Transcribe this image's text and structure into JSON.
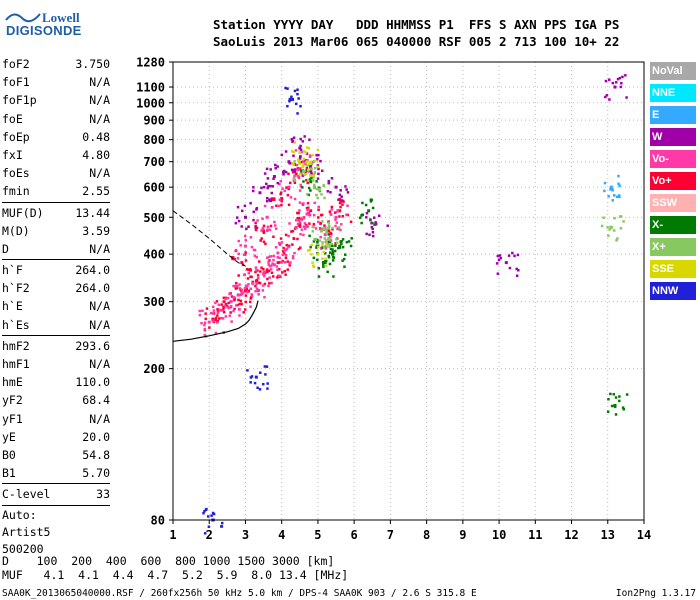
{
  "logo": {
    "line1": "Lowell",
    "line2": "DIGISONDE"
  },
  "header": {
    "line1": "Station YYYY DAY   DDD HHMMSS P1  FFS S AXN PPS IGA PS",
    "line2": "SaoLuis 2013 Mar06 065 040000 RSF 005 2 713 100 10+ 22"
  },
  "params_group1": [
    {
      "name": "foF2",
      "value": "3.750"
    },
    {
      "name": "foF1",
      "value": "N/A"
    },
    {
      "name": "foF1p",
      "value": "N/A"
    },
    {
      "name": "foE",
      "value": "N/A"
    },
    {
      "name": "foEp",
      "value": "0.48"
    },
    {
      "name": "fxI",
      "value": "4.80"
    },
    {
      "name": "foEs",
      "value": "N/A"
    },
    {
      "name": "fmin",
      "value": "2.55"
    }
  ],
  "params_group2": [
    {
      "name": "MUF(D)",
      "value": "13.44"
    },
    {
      "name": "M(D)",
      "value": "3.59"
    },
    {
      "name": "D",
      "value": "N/A"
    }
  ],
  "params_group3": [
    {
      "name": "h`F",
      "value": "264.0"
    },
    {
      "name": "h`F2",
      "value": "264.0"
    },
    {
      "name": "h`E",
      "value": "N/A"
    },
    {
      "name": "h`Es",
      "value": "N/A"
    }
  ],
  "params_group4": [
    {
      "name": "hmF2",
      "value": "293.6"
    },
    {
      "name": "hmF1",
      "value": "N/A"
    },
    {
      "name": "hmE",
      "value": "110.0"
    },
    {
      "name": "yF2",
      "value": "68.4"
    },
    {
      "name": "yF1",
      "value": "N/A"
    },
    {
      "name": "yE",
      "value": "20.0"
    },
    {
      "name": "B0",
      "value": "54.8"
    },
    {
      "name": "B1",
      "value": "5.70"
    }
  ],
  "params_group5": [
    {
      "name": "C-level",
      "value": "33"
    }
  ],
  "auto": {
    "l1": "Auto:",
    "l2": "Artist5",
    "l3": "500200"
  },
  "footer": {
    "d_row": "D    100  200  400  600  800 1000 1500 3000 [km]",
    "muf_row": "MUF   4.1  4.1  4.4  4.7  5.2  5.9  8.0 13.4 [MHz]"
  },
  "fileinfo": "SAA0K_2013065040000.RSF / 260fx256h 50 kHz 5.0 km / DPS-4 SAA0K 903 / 2.6 S 315.8 E",
  "version": "Ion2Png 1.3.17",
  "legend": [
    {
      "label": "NoVal",
      "color": "#a8a8a8"
    },
    {
      "label": "NNE",
      "color": "#00e8ff"
    },
    {
      "label": "E",
      "color": "#33aaff"
    },
    {
      "label": "W",
      "color": "#a000a8"
    },
    {
      "label": "Vo-",
      "color": "#ff3aa8"
    },
    {
      "label": "Vo+",
      "color": "#ff0033"
    },
    {
      "label": "SSW",
      "color": "#ffb0b0"
    },
    {
      "label": "X-",
      "color": "#007a00"
    },
    {
      "label": "X+",
      "color": "#88c860"
    },
    {
      "label": "SSE",
      "color": "#d8d800"
    },
    {
      "label": "NNW",
      "color": "#2020d8"
    }
  ],
  "chart_data": {
    "type": "scatter",
    "title": "",
    "xlabel": "",
    "ylabel": "",
    "xlim": [
      1,
      14
    ],
    "ylim": [
      80,
      1280
    ],
    "y_scale": "log",
    "x_ticks": [
      1,
      2,
      3,
      4,
      5,
      6,
      7,
      8,
      9,
      10,
      11,
      12,
      13,
      14
    ],
    "y_ticks": [
      80,
      200,
      300,
      400,
      500,
      600,
      700,
      800,
      900,
      1000,
      1100,
      1280
    ],
    "grid": true,
    "legend_position": "right",
    "series": [
      {
        "name": "Vo+",
        "color": "#ff0033",
        "points": [
          [
            2.1,
            270
          ],
          [
            2.4,
            290
          ],
          [
            2.7,
            305
          ],
          [
            3.0,
            320
          ],
          [
            3.3,
            340
          ],
          [
            3.6,
            360
          ],
          [
            3.9,
            380
          ],
          [
            4.2,
            420
          ],
          [
            4.5,
            480
          ],
          [
            4.8,
            520
          ],
          [
            5.3,
            460
          ],
          [
            5.6,
            520
          ],
          [
            2.9,
            380
          ],
          [
            3.5,
            460
          ],
          [
            4.0,
            560
          ],
          [
            4.4,
            650
          ]
        ]
      },
      {
        "name": "Vo-",
        "color": "#ff3aa8",
        "points": [
          [
            2.0,
            265
          ],
          [
            2.3,
            285
          ],
          [
            2.6,
            300
          ],
          [
            2.9,
            315
          ],
          [
            3.2,
            335
          ],
          [
            3.5,
            355
          ],
          [
            3.8,
            375
          ],
          [
            4.1,
            410
          ],
          [
            4.4,
            470
          ],
          [
            4.7,
            510
          ],
          [
            5.2,
            450
          ],
          [
            5.5,
            500
          ],
          [
            3.0,
            420
          ],
          [
            3.6,
            500
          ],
          [
            4.2,
            600
          ],
          [
            4.6,
            700
          ]
        ]
      },
      {
        "name": "W",
        "color": "#a000a8",
        "points": [
          [
            3.0,
            500
          ],
          [
            3.4,
            580
          ],
          [
            3.8,
            640
          ],
          [
            4.2,
            700
          ],
          [
            4.5,
            760
          ],
          [
            4.8,
            680
          ],
          [
            5.5,
            600
          ],
          [
            6.6,
            480
          ],
          [
            10.2,
            380
          ],
          [
            13.2,
            1100
          ]
        ]
      },
      {
        "name": "X-",
        "color": "#007a00",
        "points": [
          [
            4.8,
            620
          ],
          [
            5.0,
            420
          ],
          [
            5.2,
            380
          ],
          [
            5.4,
            400
          ],
          [
            5.6,
            420
          ],
          [
            6.4,
            520
          ],
          [
            13.2,
            160
          ]
        ]
      },
      {
        "name": "X+",
        "color": "#88c860",
        "points": [
          [
            4.6,
            660
          ],
          [
            4.9,
            600
          ],
          [
            5.1,
            460
          ],
          [
            5.3,
            440
          ],
          [
            13.1,
            470
          ]
        ]
      },
      {
        "name": "SSE",
        "color": "#d8d800",
        "points": [
          [
            4.5,
            740
          ],
          [
            4.7,
            700
          ],
          [
            5.0,
            400
          ]
        ]
      },
      {
        "name": "NNW",
        "color": "#2020d8",
        "points": [
          [
            3.3,
            190
          ],
          [
            4.3,
            1020
          ],
          [
            2.1,
            80
          ]
        ]
      },
      {
        "name": "E",
        "color": "#33aaff",
        "points": [
          [
            13.1,
            600
          ]
        ]
      }
    ],
    "traces": {
      "virtual_height_curve": [
        [
          1.0,
          236
        ],
        [
          1.5,
          239
        ],
        [
          2.0,
          244
        ],
        [
          2.5,
          250
        ],
        [
          2.8,
          255
        ],
        [
          3.0,
          262
        ],
        [
          3.1,
          268
        ],
        [
          3.2,
          278
        ],
        [
          3.3,
          290
        ],
        [
          3.35,
          302
        ]
      ],
      "dashed_extrapolation": [
        [
          1.0,
          520
        ],
        [
          1.5,
          480
        ],
        [
          2.0,
          440
        ],
        [
          2.5,
          400
        ],
        [
          2.8,
          380
        ],
        [
          3.0,
          372
        ]
      ]
    }
  }
}
